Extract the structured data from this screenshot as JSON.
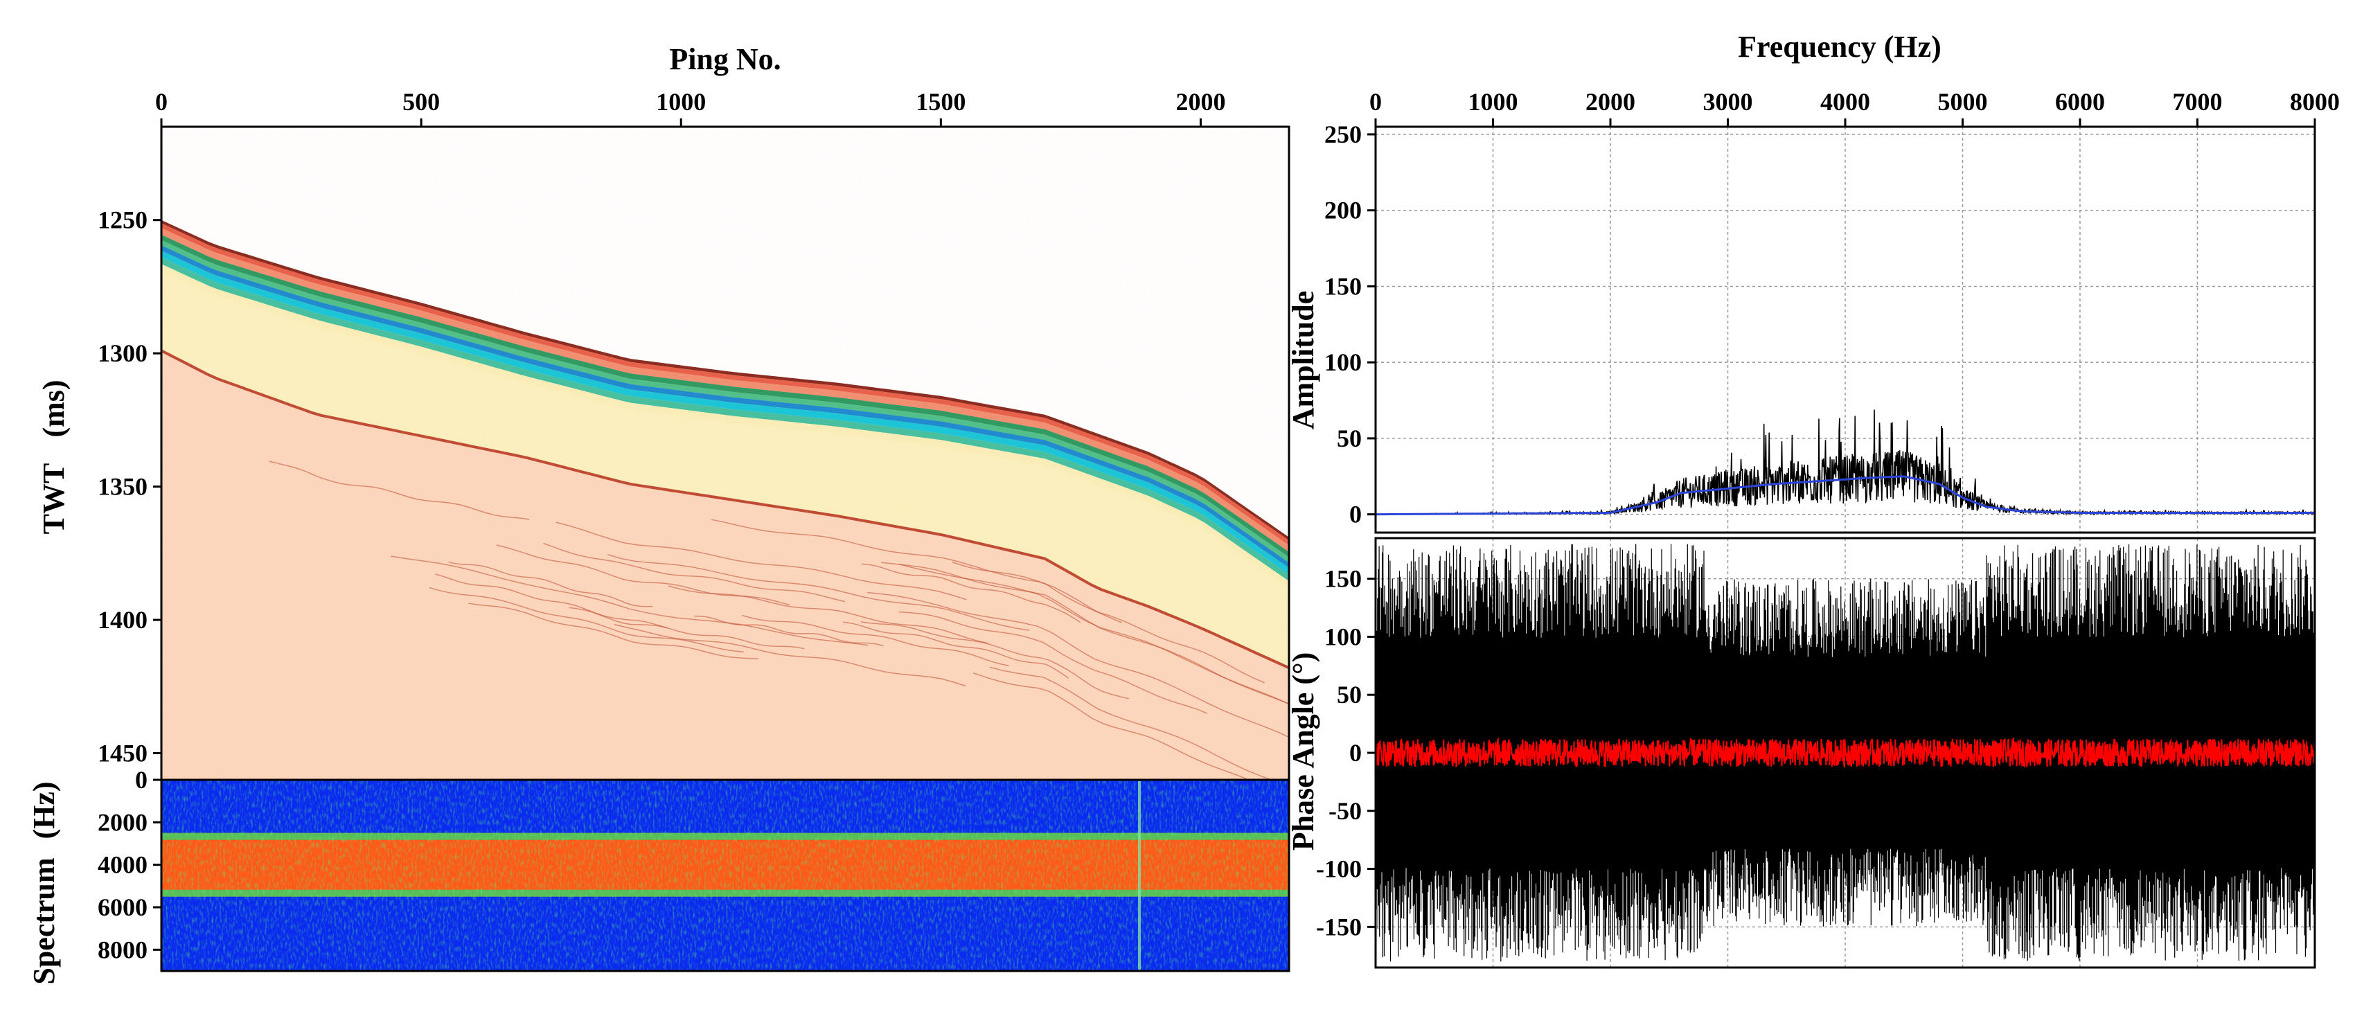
{
  "charts": {
    "profile": {
      "title": "Ping No.",
      "ylabel_1": "TWT",
      "ylabel_2": "(ms)",
      "xlim": [
        0,
        2170
      ],
      "ylim": [
        1215,
        1460
      ],
      "xticks": [
        "0",
        "500",
        "1000",
        "1500",
        "2000"
      ],
      "yticks": [
        "1250",
        "1300",
        "1350",
        "1400",
        "1450"
      ],
      "seafloor_ms": [
        1250,
        1259,
        1271,
        1281,
        1292,
        1302,
        1307,
        1311,
        1316,
        1323,
        1330,
        1337,
        1346,
        1369
      ],
      "ping_nodes": [
        0,
        100,
        300,
        500,
        700,
        900,
        1100,
        1300,
        1500,
        1700,
        1800,
        1900,
        2000,
        2170
      ],
      "sediment_base_ms": [
        1299,
        1309,
        1323,
        1331,
        1339,
        1349,
        1355,
        1361,
        1368,
        1377,
        1388,
        1395,
        1403,
        1418
      ]
    },
    "spectrogram": {
      "ylabel_1": "Spectrum",
      "ylabel_2": "(Hz)",
      "yticks": [
        "0",
        "2000",
        "4000",
        "6000",
        "8000"
      ],
      "band_hz": [
        2500,
        5500
      ]
    },
    "amplitude": {
      "title": "Frequency (Hz)",
      "ylabel": "Amplitude",
      "xlim": [
        0,
        8000
      ],
      "ylim": [
        -12,
        255
      ],
      "xticks": [
        "0",
        "1000",
        "2000",
        "3000",
        "4000",
        "5000",
        "6000",
        "7000",
        "8000"
      ],
      "yticks": [
        "250",
        "200",
        "150",
        "100",
        "50",
        "0"
      ],
      "envelope": {
        "freq_hz": [
          0,
          2000,
          2400,
          2600,
          3000,
          3400,
          3800,
          4200,
          4500,
          4800,
          5000,
          5200,
          5500,
          6000,
          8000
        ],
        "amp": [
          0,
          1,
          8,
          14,
          17,
          20,
          22,
          24,
          25,
          20,
          11,
          5,
          2,
          1,
          1
        ]
      }
    },
    "phase": {
      "ylabel": "Phase Angle (°)",
      "ylim": [
        -185,
        185
      ],
      "yticks": [
        "150",
        "100",
        "50",
        "0",
        "-50",
        "-100",
        "-150"
      ]
    }
  },
  "colors": {
    "seafloor_bands": [
      "#8b2a20",
      "#e8604a",
      "#f08f72",
      "#2e9a62",
      "#4fc08a",
      "#1e8ad0",
      "#18c6d8",
      "#45c0a0",
      "#fbeeb8"
    ],
    "water": "#ffffff",
    "sediment": "#fbf0bf",
    "basement": "#f9d3b8",
    "reflector": "#c04a32",
    "spec_bg": "#0a2bef",
    "spec_band": "#ff5a18",
    "envelope": "#2a44d8",
    "phase_trace": "#000000",
    "phase_mean": "#ff0000"
  }
}
